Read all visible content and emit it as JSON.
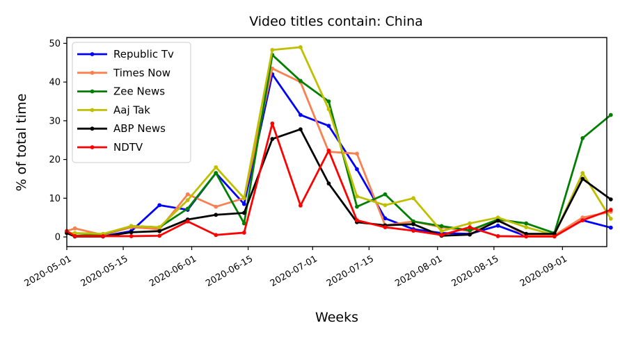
{
  "chart_data": {
    "type": "line",
    "title": "Video titles contain: China",
    "xlabel": "Weeks",
    "ylabel": "% of total time",
    "x_ticks": [
      "2020-05-01",
      "2020-05-15",
      "2020-06-01",
      "2020-06-15",
      "2020-07-01",
      "2020-07-15",
      "2020-08-01",
      "2020-08-15",
      "2020-09-01"
    ],
    "y_ticks": [
      "0",
      "10",
      "20",
      "30",
      "40",
      "50"
    ],
    "xlim": [
      "2020-05-01",
      "2020-09-12"
    ],
    "ylim": [
      -2.5,
      51.5
    ],
    "grid": false,
    "legend_position": "top-left",
    "x": [
      "2020-05-01",
      "2020-05-03",
      "2020-05-10",
      "2020-05-17",
      "2020-05-24",
      "2020-05-31",
      "2020-06-07",
      "2020-06-14",
      "2020-06-21",
      "2020-06-28",
      "2020-07-05",
      "2020-07-12",
      "2020-07-19",
      "2020-07-26",
      "2020-08-02",
      "2020-08-09",
      "2020-08-16",
      "2020-08-23",
      "2020-08-30",
      "2020-09-06",
      "2020-09-13"
    ],
    "series": [
      {
        "name": "Republic Tv",
        "color": "#0000ff",
        "values": [
          1.3,
          0.3,
          0.2,
          1.5,
          8.2,
          7.0,
          16.5,
          8.5,
          42.0,
          31.5,
          28.7,
          17.5,
          4.8,
          2.0,
          1.0,
          0.8,
          2.9,
          0.2,
          0.3,
          4.3,
          2.4
        ]
      },
      {
        "name": "Times Now",
        "color": "#fa8050",
        "values": [
          1.5,
          2.2,
          0.5,
          2.5,
          2.0,
          11.0,
          7.8,
          10.0,
          43.5,
          40.0,
          22.0,
          21.5,
          3.0,
          4.0,
          2.5,
          1.5,
          4.5,
          0.3,
          0.4,
          5.0,
          6.5
        ]
      },
      {
        "name": "Zee News",
        "color": "#007f00",
        "values": [
          1.2,
          0.3,
          0.7,
          2.8,
          2.5,
          7.3,
          16.5,
          3.5,
          47.0,
          40.3,
          35.0,
          7.8,
          11.0,
          4.0,
          2.8,
          1.7,
          4.5,
          3.5,
          1.0,
          25.5,
          31.5
        ]
      },
      {
        "name": "Aaj Tak",
        "color": "#bfbf00",
        "values": [
          1.0,
          1.0,
          0.8,
          2.8,
          2.5,
          9.5,
          18.0,
          10.0,
          48.3,
          49.0,
          33.0,
          10.5,
          8.2,
          10.0,
          1.5,
          3.5,
          5.0,
          2.5,
          0.5,
          16.5,
          4.7
        ]
      },
      {
        "name": "ABP News",
        "color": "#000000",
        "values": [
          1.0,
          0.1,
          0.1,
          1.2,
          1.5,
          4.5,
          5.7,
          6.2,
          25.3,
          27.8,
          13.8,
          3.8,
          3.0,
          3.3,
          0.3,
          0.6,
          4.2,
          0.8,
          0.8,
          15.0,
          9.7
        ]
      },
      {
        "name": "NDTV",
        "color": "#ff0000",
        "values": [
          1.5,
          0.2,
          0.2,
          0.2,
          0.3,
          4.0,
          0.5,
          1.1,
          29.3,
          8.1,
          22.3,
          4.3,
          2.5,
          1.6,
          0.5,
          2.5,
          0.2,
          0.1,
          0.1,
          4.3,
          7.0
        ]
      }
    ]
  }
}
